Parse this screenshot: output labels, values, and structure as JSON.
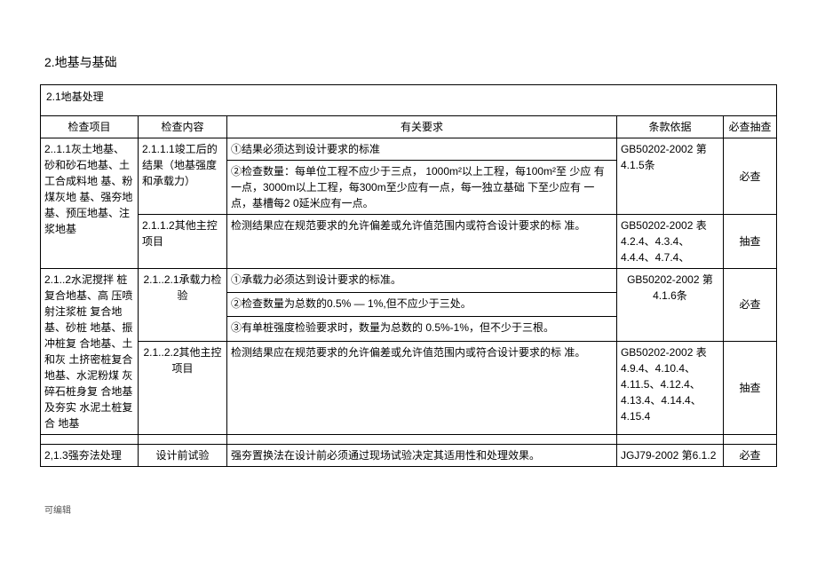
{
  "section_title": "2.地基与基础",
  "sub_section": "2.1地基处理",
  "headers": {
    "item": "检查项目",
    "content": "检查内容",
    "requirement": "有关要求",
    "basis": "条款依据",
    "check": "必查抽查"
  },
  "rows": {
    "r1": {
      "item": "2..1.1灰土地基、砂和砂石地基、土工合成料地 基、粉煤灰地 基、强夯地基、预压地基、注浆地基",
      "content1": "2.1.1.1竣工后的 结果（地基强度 和承载力）",
      "req1a": "①结果必须达到设计要求的标准",
      "req1b": "②检查数量：每单位工程不应少于三点， 1000m²以上工程，每100m²至  少应 有一点，3000m以上工程，每300m至少应有一点，每一独立基础 下至少应有 一点，基槽每2 0延米应有一点。",
      "basis1": "GB50202-2002 第4.1.5条",
      "check1": "必查",
      "content2": "2.1.1.2其他主控  项目",
      "req2": "检测结果应在规范要求的允许偏差或允许值范围内或符合设计要求的标  准。",
      "basis2": "GB50202-2002 表4.2.4、4.3.4、4.4.4、4.7.4、",
      "check2": "抽查"
    },
    "r2": {
      "item": "2.1..2水泥搅拌  桩复合地基、高  压喷射注浆桩  复合地基、砂桩  地基、振冲桩复  合地基、土和灰  土挤密桩复合  地基、水泥粉煤  灰碎石桩身复  合地基及夯实  水泥土桩复合  地基",
      "content1": "2.1..2.1承载力检验",
      "req1a": "①承载力必须达到设计要求的标准。",
      "req1b": "②检查数量为总数的0.5% — 1%,但不应少于三处。",
      "req1c": "③有单桩强度检验要求时，数量为总数的 0.5%-1%，但不少于三根。",
      "basis1": "GB50202-2002 第4.1.6条",
      "check1": "必查",
      "content2": "2.1..2.2其他主控项目",
      "req2": "检测结果应在规范要求的允许偏差或允许值范围内或符合设计要求的标  准。",
      "basis2": "GB50202-2002 表4.9.4、4.10.4、4.11.5、4.12.4、4.13.4、4.14.4、4.15.4",
      "check2": "抽查"
    },
    "r3": {
      "item": "2,1.3强夯法处理",
      "content": "设计前试验",
      "req": "强夯置换法在设计前必须通过现场试验决定其适用性和处理效果。",
      "basis": "JGJ79-2002 第6.1.2",
      "check": "必查"
    }
  },
  "footer": "可编辑"
}
